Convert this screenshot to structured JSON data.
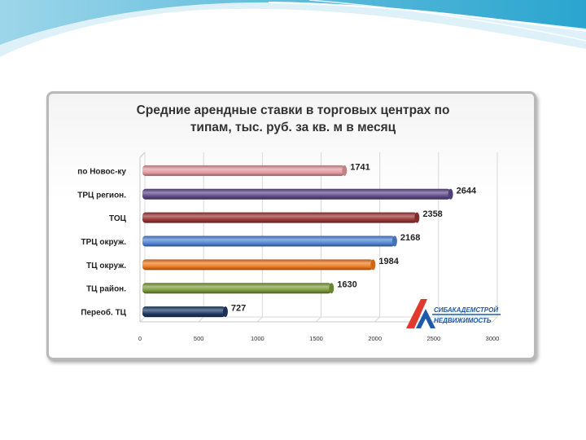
{
  "colors": {
    "header_light": "#dff1f8",
    "header_mid": "#7cc8e2",
    "header_dark": "#1f9fc9",
    "frame_border": "#b8b8b8",
    "grid": "#d9d9d9",
    "logo_red": "#e03a2e",
    "logo_blue": "#1f5aa8"
  },
  "logo": {
    "line1": "СИБАКАДЕМСТРОЙ",
    "line2": "НЕДВИЖИМОСТЬ"
  },
  "chart_data": {
    "type": "bar",
    "orientation": "horizontal",
    "title_lines": [
      "Средние арендные ставки в торговых центрах по",
      "типам, тыс. руб. за кв. м в месяц"
    ],
    "categories": [
      "по Новос-ку",
      "ТРЦ регион.",
      "ТОЦ",
      "ТРЦ окруж.",
      "ТЦ окруж.",
      "ТЦ район.",
      "Переоб. ТЦ"
    ],
    "values": [
      1741,
      2644,
      2358,
      2168,
      1984,
      1630,
      727
    ],
    "value_labels": [
      "1741",
      "2644",
      "2358",
      "2168",
      "1984",
      "1630",
      "727"
    ],
    "bar_colors": [
      "#e49aa0",
      "#5d4a88",
      "#9a3535",
      "#4f86d6",
      "#f07a1e",
      "#7d9c3a",
      "#1f3a66"
    ],
    "xlim": [
      0,
      3000
    ],
    "xticks": [
      "0",
      "500",
      "1000",
      "1500",
      "2000",
      "2500",
      "3000"
    ],
    "grid": true,
    "legend": "none",
    "style": "3d-cylinder"
  }
}
